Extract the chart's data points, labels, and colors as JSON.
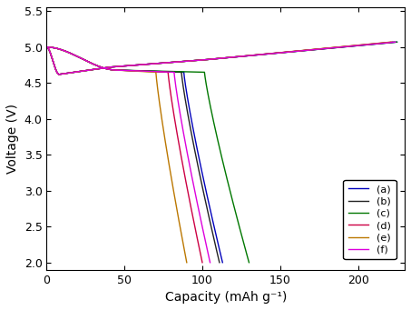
{
  "xlabel": "Capacity (mAh g⁻¹)",
  "ylabel": "Voltage (V)",
  "xlim": [
    0,
    230
  ],
  "ylim": [
    1.9,
    5.55
  ],
  "xticks": [
    0,
    50,
    100,
    150,
    200
  ],
  "yticks": [
    2.0,
    2.5,
    3.0,
    3.5,
    4.0,
    4.5,
    5.0,
    5.5
  ],
  "legend_labels": [
    "(a)",
    "(b)",
    "(c)",
    "(d)",
    "(e)",
    "(f)"
  ],
  "colors": [
    "#0000bb",
    "#222222",
    "#007700",
    "#cc0044",
    "#bb7700",
    "#dd00dd"
  ],
  "background": "#ffffff",
  "figsize": [
    4.53,
    3.41
  ],
  "dpi": 100,
  "discharge_peaks": [
    113,
    111,
    130,
    100,
    90,
    105
  ],
  "charge_maxcaps": [
    225,
    223,
    225,
    222,
    221,
    224
  ],
  "linewidth": 1.0
}
